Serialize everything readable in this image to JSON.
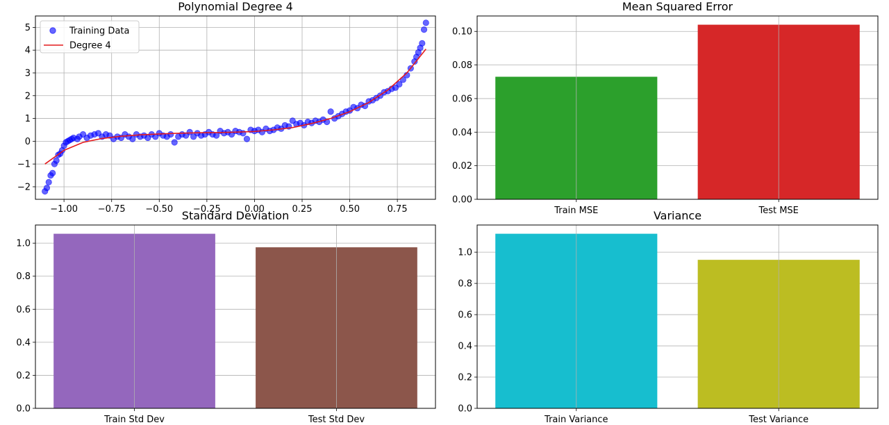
{
  "chart_data": [
    {
      "type": "scatter",
      "title": "Polynomial Degree 4",
      "xlabel": "",
      "ylabel": "",
      "xlim": [
        -1.15,
        0.95
      ],
      "ylim": [
        -2.55,
        5.5
      ],
      "xticks": [
        -1.0,
        -0.75,
        -0.5,
        -0.25,
        0.0,
        0.25,
        0.5,
        0.75
      ],
      "xtick_labels": [
        "−1.00",
        "−0.75",
        "−0.50",
        "−0.25",
        "0.00",
        "0.25",
        "0.50",
        "0.75"
      ],
      "yticks": [
        -2,
        -1,
        0,
        1,
        2,
        3,
        4,
        5
      ],
      "ytick_labels": [
        "−2",
        "−1",
        "0",
        "1",
        "2",
        "3",
        "4",
        "5"
      ],
      "grid": true,
      "legend_position": "top-left",
      "legend": [
        "Training Data",
        "Degree 4"
      ],
      "scatter_color": "#0000ff",
      "line_color": "#e41a1c",
      "series": [
        {
          "name": "Training Data",
          "kind": "scatter",
          "points": [
            [
              -1.1,
              -2.2
            ],
            [
              -1.09,
              -2.05
            ],
            [
              -1.08,
              -1.8
            ],
            [
              -1.07,
              -1.5
            ],
            [
              -1.06,
              -1.4
            ],
            [
              -1.05,
              -1.0
            ],
            [
              -1.04,
              -0.85
            ],
            [
              -1.03,
              -0.6
            ],
            [
              -1.02,
              -0.55
            ],
            [
              -1.01,
              -0.4
            ],
            [
              -1.0,
              -0.2
            ],
            [
              -0.99,
              -0.05
            ],
            [
              -0.98,
              0.0
            ],
            [
              -0.97,
              0.05
            ],
            [
              -0.96,
              0.1
            ],
            [
              -0.95,
              0.15
            ],
            [
              -0.93,
              0.1
            ],
            [
              -0.92,
              0.2
            ],
            [
              -0.9,
              0.3
            ],
            [
              -0.88,
              0.15
            ],
            [
              -0.86,
              0.25
            ],
            [
              -0.84,
              0.3
            ],
            [
              -0.82,
              0.35
            ],
            [
              -0.8,
              0.2
            ],
            [
              -0.78,
              0.3
            ],
            [
              -0.76,
              0.25
            ],
            [
              -0.74,
              0.1
            ],
            [
              -0.72,
              0.2
            ],
            [
              -0.7,
              0.15
            ],
            [
              -0.68,
              0.3
            ],
            [
              -0.66,
              0.2
            ],
            [
              -0.64,
              0.1
            ],
            [
              -0.62,
              0.3
            ],
            [
              -0.6,
              0.2
            ],
            [
              -0.58,
              0.25
            ],
            [
              -0.56,
              0.15
            ],
            [
              -0.54,
              0.3
            ],
            [
              -0.52,
              0.2
            ],
            [
              -0.5,
              0.35
            ],
            [
              -0.48,
              0.25
            ],
            [
              -0.46,
              0.2
            ],
            [
              -0.44,
              0.3
            ],
            [
              -0.42,
              -0.05
            ],
            [
              -0.4,
              0.2
            ],
            [
              -0.38,
              0.3
            ],
            [
              -0.36,
              0.25
            ],
            [
              -0.34,
              0.4
            ],
            [
              -0.32,
              0.2
            ],
            [
              -0.3,
              0.35
            ],
            [
              -0.28,
              0.25
            ],
            [
              -0.26,
              0.3
            ],
            [
              -0.24,
              0.4
            ],
            [
              -0.22,
              0.3
            ],
            [
              -0.2,
              0.25
            ],
            [
              -0.18,
              0.45
            ],
            [
              -0.16,
              0.35
            ],
            [
              -0.14,
              0.4
            ],
            [
              -0.12,
              0.3
            ],
            [
              -0.1,
              0.45
            ],
            [
              -0.08,
              0.4
            ],
            [
              -0.06,
              0.35
            ],
            [
              -0.04,
              0.1
            ],
            [
              -0.02,
              0.5
            ],
            [
              0.0,
              0.45
            ],
            [
              0.02,
              0.5
            ],
            [
              0.04,
              0.4
            ],
            [
              0.06,
              0.55
            ],
            [
              0.08,
              0.45
            ],
            [
              0.1,
              0.5
            ],
            [
              0.12,
              0.6
            ],
            [
              0.14,
              0.55
            ],
            [
              0.16,
              0.7
            ],
            [
              0.18,
              0.65
            ],
            [
              0.2,
              0.9
            ],
            [
              0.22,
              0.75
            ],
            [
              0.24,
              0.8
            ],
            [
              0.26,
              0.7
            ],
            [
              0.28,
              0.85
            ],
            [
              0.3,
              0.8
            ],
            [
              0.32,
              0.9
            ],
            [
              0.34,
              0.85
            ],
            [
              0.36,
              0.95
            ],
            [
              0.38,
              0.85
            ],
            [
              0.4,
              1.3
            ],
            [
              0.42,
              1.0
            ],
            [
              0.44,
              1.1
            ],
            [
              0.46,
              1.2
            ],
            [
              0.48,
              1.3
            ],
            [
              0.5,
              1.35
            ],
            [
              0.52,
              1.5
            ],
            [
              0.54,
              1.45
            ],
            [
              0.56,
              1.6
            ],
            [
              0.58,
              1.55
            ],
            [
              0.6,
              1.75
            ],
            [
              0.62,
              1.8
            ],
            [
              0.64,
              1.9
            ],
            [
              0.66,
              2.0
            ],
            [
              0.68,
              2.15
            ],
            [
              0.7,
              2.2
            ],
            [
              0.72,
              2.3
            ],
            [
              0.74,
              2.35
            ],
            [
              0.76,
              2.5
            ],
            [
              0.78,
              2.7
            ],
            [
              0.8,
              2.9
            ],
            [
              0.82,
              3.2
            ],
            [
              0.84,
              3.5
            ],
            [
              0.85,
              3.7
            ],
            [
              0.86,
              3.9
            ],
            [
              0.87,
              4.1
            ],
            [
              0.88,
              4.3
            ],
            [
              0.89,
              4.9
            ],
            [
              0.9,
              5.2
            ]
          ]
        },
        {
          "name": "Degree 4",
          "kind": "line",
          "x": [
            -1.1,
            -1.0,
            -0.9,
            -0.8,
            -0.7,
            -0.6,
            -0.5,
            -0.4,
            -0.3,
            -0.2,
            -0.1,
            0.0,
            0.1,
            0.2,
            0.3,
            0.4,
            0.5,
            0.6,
            0.7,
            0.8,
            0.9
          ],
          "y": [
            -1.0,
            -0.4,
            -0.05,
            0.12,
            0.22,
            0.28,
            0.32,
            0.35,
            0.37,
            0.38,
            0.4,
            0.43,
            0.5,
            0.6,
            0.78,
            1.0,
            1.3,
            1.7,
            2.25,
            3.0,
            4.05
          ]
        }
      ]
    },
    {
      "type": "bar",
      "title": "Mean Squared Error",
      "xlabel": "",
      "ylabel": "",
      "categories": [
        "Train MSE",
        "Test MSE"
      ],
      "values": [
        0.073,
        0.104
      ],
      "colors": [
        "#2ca02c",
        "#d62728"
      ],
      "ylim": [
        0,
        0.1092
      ],
      "yticks": [
        0.0,
        0.02,
        0.04,
        0.06,
        0.08,
        0.1
      ],
      "ytick_labels": [
        "0.00",
        "0.02",
        "0.04",
        "0.06",
        "0.08",
        "0.10"
      ],
      "grid": true
    },
    {
      "type": "bar",
      "title": "Standard Deviation",
      "xlabel": "",
      "ylabel": "",
      "categories": [
        "Train Std Dev",
        "Test Std Dev"
      ],
      "values": [
        1.057,
        0.975
      ],
      "colors": [
        "#9467bd",
        "#8c564b"
      ],
      "ylim": [
        0,
        1.11
      ],
      "yticks": [
        0.0,
        0.2,
        0.4,
        0.6,
        0.8,
        1.0
      ],
      "ytick_labels": [
        "0.0",
        "0.2",
        "0.4",
        "0.6",
        "0.8",
        "1.0"
      ],
      "grid": true
    },
    {
      "type": "bar",
      "title": "Variance",
      "xlabel": "",
      "ylabel": "",
      "categories": [
        "Train Variance",
        "Test Variance"
      ],
      "values": [
        1.118,
        0.951
      ],
      "colors": [
        "#17becf",
        "#bcbd22"
      ],
      "ylim": [
        0,
        1.174
      ],
      "yticks": [
        0.0,
        0.2,
        0.4,
        0.6,
        0.8,
        1.0
      ],
      "ytick_labels": [
        "0.0",
        "0.2",
        "0.4",
        "0.6",
        "0.8",
        "1.0"
      ],
      "grid": true
    }
  ]
}
